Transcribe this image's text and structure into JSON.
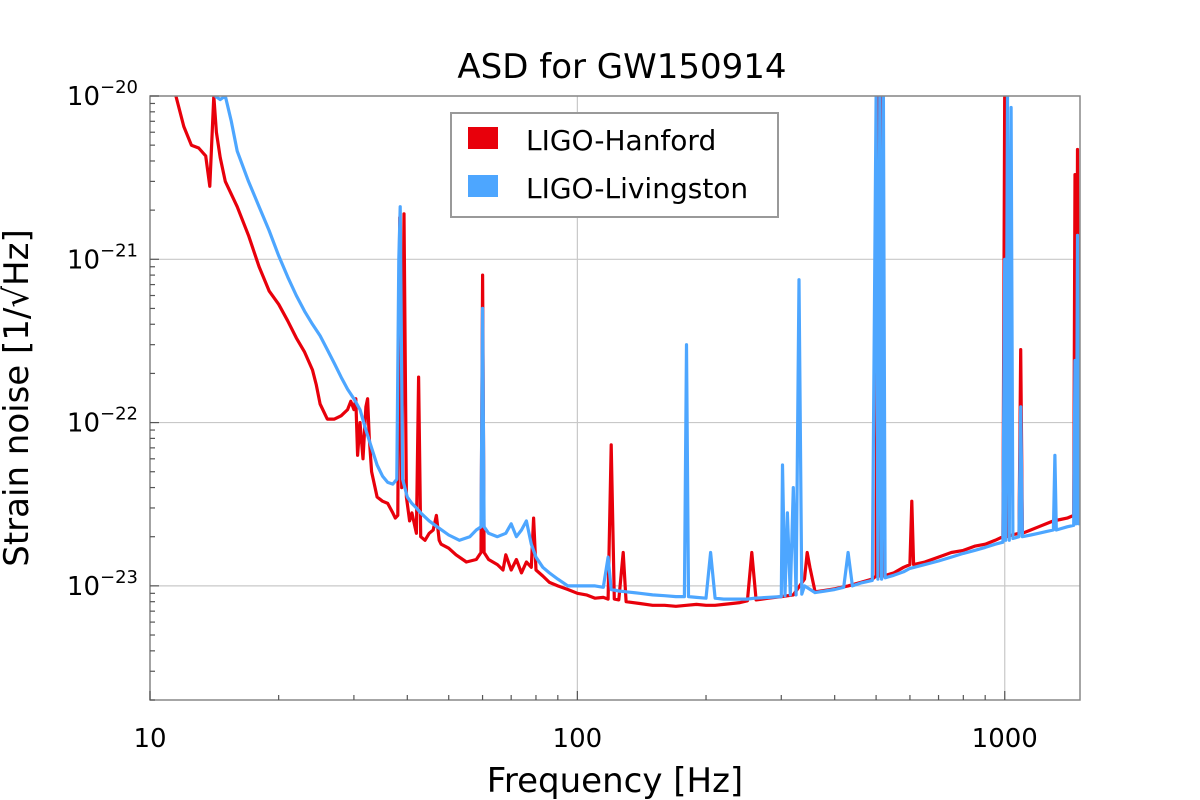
{
  "chart_data": {
    "type": "line",
    "title": "ASD for GW150914",
    "xlabel": "Frequency [Hz]",
    "ylabel": "Strain noise [1/√Hz]",
    "xscale": "log",
    "yscale": "log",
    "xlim": [
      10,
      1500
    ],
    "ylim": [
      2e-24,
      1e-20
    ],
    "grid": true,
    "legend_position": "top-center",
    "x_ticks": [
      {
        "value": 10,
        "label": "10"
      },
      {
        "value": 100,
        "label": "100"
      },
      {
        "value": 1000,
        "label": "1000"
      }
    ],
    "y_ticks": [
      {
        "value": 1e-20,
        "base": "10",
        "exp": "−20"
      },
      {
        "value": 1e-21,
        "base": "10",
        "exp": "−21"
      },
      {
        "value": 1e-22,
        "base": "10",
        "exp": "−22"
      },
      {
        "value": 1e-23,
        "base": "10",
        "exp": "−23"
      }
    ],
    "series": [
      {
        "name": "LIGO-Hanford",
        "color": "#e8000b",
        "points": [
          [
            11.5,
            1e-20
          ],
          [
            12,
            6.5e-21
          ],
          [
            12.5,
            5e-21
          ],
          [
            13,
            4.8e-21
          ],
          [
            13.5,
            4.3e-21
          ],
          [
            13.8,
            2.8e-21
          ],
          [
            14.1,
            1e-20
          ],
          [
            14.3,
            6e-21
          ],
          [
            14.6,
            4.2e-21
          ],
          [
            15,
            3e-21
          ],
          [
            16,
            2.1e-21
          ],
          [
            17,
            1.4e-21
          ],
          [
            18,
            9e-22
          ],
          [
            19,
            6.4e-22
          ],
          [
            20,
            5.3e-22
          ],
          [
            21,
            4.2e-22
          ],
          [
            22,
            3.3e-22
          ],
          [
            23,
            2.7e-22
          ],
          [
            24,
            2.1e-22
          ],
          [
            24.5,
            1.7e-22
          ],
          [
            25,
            1.3e-22
          ],
          [
            26,
            1.05e-22
          ],
          [
            27,
            1.05e-22
          ],
          [
            28,
            1.1e-22
          ],
          [
            29,
            1.2e-22
          ],
          [
            29.5,
            1.35e-22
          ],
          [
            30,
            1.2e-22
          ],
          [
            30.3,
            1.4e-22
          ],
          [
            30.6,
            6.3e-23
          ],
          [
            31,
            1e-22
          ],
          [
            31.5,
            6e-23
          ],
          [
            32,
            1.25e-22
          ],
          [
            32.3,
            1.4e-22
          ],
          [
            32.6,
            8e-23
          ],
          [
            33,
            5e-23
          ],
          [
            34,
            3.5e-23
          ],
          [
            35,
            3.3e-23
          ],
          [
            36,
            3.2e-23
          ],
          [
            37,
            2.8e-23
          ],
          [
            37.5,
            2.6e-23
          ],
          [
            38,
            2.7e-23
          ],
          [
            38.4,
            1.8e-21
          ],
          [
            38.8,
            4e-23
          ],
          [
            39.3,
            1.9e-21
          ],
          [
            39.8,
            3.5e-23
          ],
          [
            40.5,
            2.5e-23
          ],
          [
            41,
            2.8e-23
          ],
          [
            42,
            2.1e-23
          ],
          [
            42.5,
            1.9e-22
          ],
          [
            43,
            2e-23
          ],
          [
            44,
            1.9e-23
          ],
          [
            45,
            2.1e-23
          ],
          [
            46,
            2.2e-23
          ],
          [
            46.8,
            2.7e-23
          ],
          [
            47.5,
            1.9e-23
          ],
          [
            48,
            1.8e-23
          ],
          [
            50,
            1.7e-23
          ],
          [
            52,
            1.55e-23
          ],
          [
            55,
            1.4e-23
          ],
          [
            58,
            1.45e-23
          ],
          [
            59.5,
            1.6e-23
          ],
          [
            60,
            8e-22
          ],
          [
            60.5,
            1.6e-23
          ],
          [
            62,
            1.45e-23
          ],
          [
            65,
            1.35e-23
          ],
          [
            67,
            1.25e-23
          ],
          [
            68,
            1.55e-23
          ],
          [
            70,
            1.25e-23
          ],
          [
            72,
            1.45e-23
          ],
          [
            74,
            1.2e-23
          ],
          [
            76,
            1.4e-23
          ],
          [
            78,
            1.3e-23
          ],
          [
            79,
            2.6e-23
          ],
          [
            80,
            1.25e-23
          ],
          [
            83,
            1.15e-23
          ],
          [
            86,
            1.05e-23
          ],
          [
            90,
            1e-23
          ],
          [
            95,
            9.5e-24
          ],
          [
            100,
            9e-24
          ],
          [
            105,
            8.8e-24
          ],
          [
            110,
            8.4e-24
          ],
          [
            115,
            8.5e-24
          ],
          [
            118,
            8.3e-24
          ],
          [
            120,
            7.3e-23
          ],
          [
            122,
            8.3e-24
          ],
          [
            125,
            8.2e-24
          ],
          [
            128,
            1.6e-23
          ],
          [
            130,
            8e-24
          ],
          [
            140,
            7.8e-24
          ],
          [
            150,
            7.6e-24
          ],
          [
            160,
            7.6e-24
          ],
          [
            170,
            7.5e-24
          ],
          [
            180,
            7.6e-24
          ],
          [
            190,
            7.7e-24
          ],
          [
            200,
            7.6e-24
          ],
          [
            210,
            7.6e-24
          ],
          [
            220,
            7.7e-24
          ],
          [
            230,
            7.8e-24
          ],
          [
            240,
            7.9e-24
          ],
          [
            250,
            8.1e-24
          ],
          [
            256,
            1.6e-23
          ],
          [
            262,
            8.2e-24
          ],
          [
            280,
            8.4e-24
          ],
          [
            300,
            8.6e-24
          ],
          [
            320,
            8.8e-24
          ],
          [
            340,
            1.1e-23
          ],
          [
            345,
            1.6e-23
          ],
          [
            350,
            1.3e-23
          ],
          [
            360,
            9.2e-24
          ],
          [
            380,
            9.4e-24
          ],
          [
            400,
            9.6e-24
          ],
          [
            430,
            1e-23
          ],
          [
            460,
            1.05e-23
          ],
          [
            490,
            1.1e-23
          ],
          [
            500,
            1.15e-23
          ],
          [
            505,
            1e-20
          ],
          [
            510,
            1.15e-23
          ],
          [
            515,
            1e-20
          ],
          [
            520,
            1.15e-23
          ],
          [
            550,
            1.2e-23
          ],
          [
            580,
            1.3e-23
          ],
          [
            600,
            1.35e-23
          ],
          [
            606,
            3.3e-23
          ],
          [
            612,
            1.35e-23
          ],
          [
            650,
            1.4e-23
          ],
          [
            700,
            1.5e-23
          ],
          [
            750,
            1.6e-23
          ],
          [
            800,
            1.65e-23
          ],
          [
            850,
            1.75e-23
          ],
          [
            900,
            1.8e-23
          ],
          [
            950,
            1.9e-23
          ],
          [
            990,
            2e-23
          ],
          [
            1000,
            1e-20
          ],
          [
            1010,
            2e-23
          ],
          [
            1040,
            2.05e-23
          ],
          [
            1080,
            2.1e-23
          ],
          [
            1090,
            2.8e-22
          ],
          [
            1100,
            2.1e-23
          ],
          [
            1150,
            2.2e-23
          ],
          [
            1200,
            2.3e-23
          ],
          [
            1250,
            2.4e-23
          ],
          [
            1300,
            2.5e-23
          ],
          [
            1350,
            2.55e-23
          ],
          [
            1400,
            2.6e-23
          ],
          [
            1450,
            2.7e-23
          ],
          [
            1460,
            3.3e-21
          ],
          [
            1470,
            2.7e-23
          ],
          [
            1480,
            4.7e-21
          ],
          [
            1490,
            2.75e-23
          ],
          [
            1500,
            2.8e-23
          ]
        ]
      },
      {
        "name": "LIGO-Livingston",
        "color": "#4da6ff",
        "points": [
          [
            14.2,
            1e-20
          ],
          [
            14.6,
            9.5e-21
          ],
          [
            15,
            1e-20
          ],
          [
            15.5,
            7e-21
          ],
          [
            16,
            4.6e-21
          ],
          [
            17,
            3e-21
          ],
          [
            18,
            2.1e-21
          ],
          [
            19,
            1.5e-21
          ],
          [
            20,
            1.05e-21
          ],
          [
            21,
            7.8e-22
          ],
          [
            22,
            6e-22
          ],
          [
            23,
            4.8e-22
          ],
          [
            24,
            4e-22
          ],
          [
            25,
            3.4e-22
          ],
          [
            26,
            2.8e-22
          ],
          [
            27,
            2.3e-22
          ],
          [
            28,
            1.9e-22
          ],
          [
            29,
            1.6e-22
          ],
          [
            30,
            1.4e-22
          ],
          [
            31,
            1.2e-22
          ],
          [
            32,
            9e-23
          ],
          [
            33,
            7e-23
          ],
          [
            34,
            5.5e-23
          ],
          [
            35,
            4.7e-23
          ],
          [
            36,
            4.3e-23
          ],
          [
            37,
            4.2e-23
          ],
          [
            37.8,
            4.5e-23
          ],
          [
            38.2,
            1e-21
          ],
          [
            38.5,
            2.1e-21
          ],
          [
            39,
            4.5e-23
          ],
          [
            40,
            3.5e-23
          ],
          [
            41,
            3.2e-23
          ],
          [
            42,
            3e-23
          ],
          [
            43,
            2.8e-23
          ],
          [
            45,
            2.5e-23
          ],
          [
            47,
            2.3e-23
          ],
          [
            50,
            2.05e-23
          ],
          [
            53,
            1.9e-23
          ],
          [
            56,
            2e-23
          ],
          [
            58,
            2.2e-23
          ],
          [
            59.5,
            2.3e-23
          ],
          [
            60,
            5e-22
          ],
          [
            60.5,
            2.3e-23
          ],
          [
            62,
            2.1e-23
          ],
          [
            65,
            2e-23
          ],
          [
            68,
            2.1e-23
          ],
          [
            70,
            2.4e-23
          ],
          [
            72,
            2e-23
          ],
          [
            74,
            2.2e-23
          ],
          [
            76,
            2.5e-23
          ],
          [
            78,
            1.8e-23
          ],
          [
            80,
            1.5e-23
          ],
          [
            83,
            1.3e-23
          ],
          [
            86,
            1.2e-23
          ],
          [
            90,
            1.1e-23
          ],
          [
            95,
            1e-23
          ],
          [
            100,
            1e-23
          ],
          [
            110,
            1e-23
          ],
          [
            115,
            9.8e-24
          ],
          [
            118,
            1.5e-23
          ],
          [
            120,
            9.5e-24
          ],
          [
            125,
            9.3e-24
          ],
          [
            130,
            9.2e-24
          ],
          [
            140,
            9e-24
          ],
          [
            150,
            8.8e-24
          ],
          [
            160,
            8.7e-24
          ],
          [
            170,
            8.6e-24
          ],
          [
            178,
            8.6e-24
          ],
          [
            180,
            3e-22
          ],
          [
            182,
            8.6e-24
          ],
          [
            190,
            8.5e-24
          ],
          [
            200,
            8.4e-24
          ],
          [
            205,
            1.6e-23
          ],
          [
            210,
            8.4e-24
          ],
          [
            220,
            8.3e-24
          ],
          [
            230,
            8.3e-24
          ],
          [
            240,
            8.3e-24
          ],
          [
            250,
            8.3e-24
          ],
          [
            260,
            8.4e-24
          ],
          [
            280,
            8.5e-24
          ],
          [
            300,
            8.6e-24
          ],
          [
            302,
            5.5e-23
          ],
          [
            306,
            8.7e-24
          ],
          [
            310,
            2.8e-23
          ],
          [
            315,
            8.8e-24
          ],
          [
            320,
            4e-23
          ],
          [
            325,
            8.8e-24
          ],
          [
            330,
            7.5e-22
          ],
          [
            335,
            8.9e-24
          ],
          [
            340,
            1e-23
          ],
          [
            360,
            9.1e-24
          ],
          [
            380,
            9.3e-24
          ],
          [
            400,
            9.5e-24
          ],
          [
            420,
            9.8e-24
          ],
          [
            430,
            1.6e-23
          ],
          [
            440,
            1e-23
          ],
          [
            460,
            1.04e-23
          ],
          [
            490,
            1.08e-23
          ],
          [
            500,
            1e-20
          ],
          [
            505,
            1.1e-23
          ],
          [
            510,
            1e-20
          ],
          [
            515,
            1.1e-23
          ],
          [
            520,
            1e-20
          ],
          [
            525,
            1.12e-23
          ],
          [
            550,
            1.16e-23
          ],
          [
            580,
            1.22e-23
          ],
          [
            600,
            1.28e-23
          ],
          [
            650,
            1.35e-23
          ],
          [
            700,
            1.42e-23
          ],
          [
            750,
            1.5e-23
          ],
          [
            800,
            1.58e-23
          ],
          [
            850,
            1.65e-23
          ],
          [
            900,
            1.72e-23
          ],
          [
            950,
            1.8e-23
          ],
          [
            990,
            1.85e-23
          ],
          [
            1000,
            1e-21
          ],
          [
            1005,
            1.9e-23
          ],
          [
            1015,
            1e-20
          ],
          [
            1025,
            1.9e-23
          ],
          [
            1035,
            8.5e-21
          ],
          [
            1045,
            1.95e-23
          ],
          [
            1080,
            2e-23
          ],
          [
            1090,
            1.25e-22
          ],
          [
            1100,
            2e-23
          ],
          [
            1150,
            2.05e-23
          ],
          [
            1200,
            2.1e-23
          ],
          [
            1250,
            2.15e-23
          ],
          [
            1300,
            2.2e-23
          ],
          [
            1310,
            6.3e-23
          ],
          [
            1320,
            2.2e-23
          ],
          [
            1400,
            2.3e-23
          ],
          [
            1450,
            2.35e-23
          ],
          [
            1460,
            2.4e-22
          ],
          [
            1470,
            2.4e-23
          ],
          [
            1480,
            1.4e-21
          ],
          [
            1490,
            2.4e-23
          ],
          [
            1500,
            2.4e-23
          ]
        ]
      }
    ]
  }
}
